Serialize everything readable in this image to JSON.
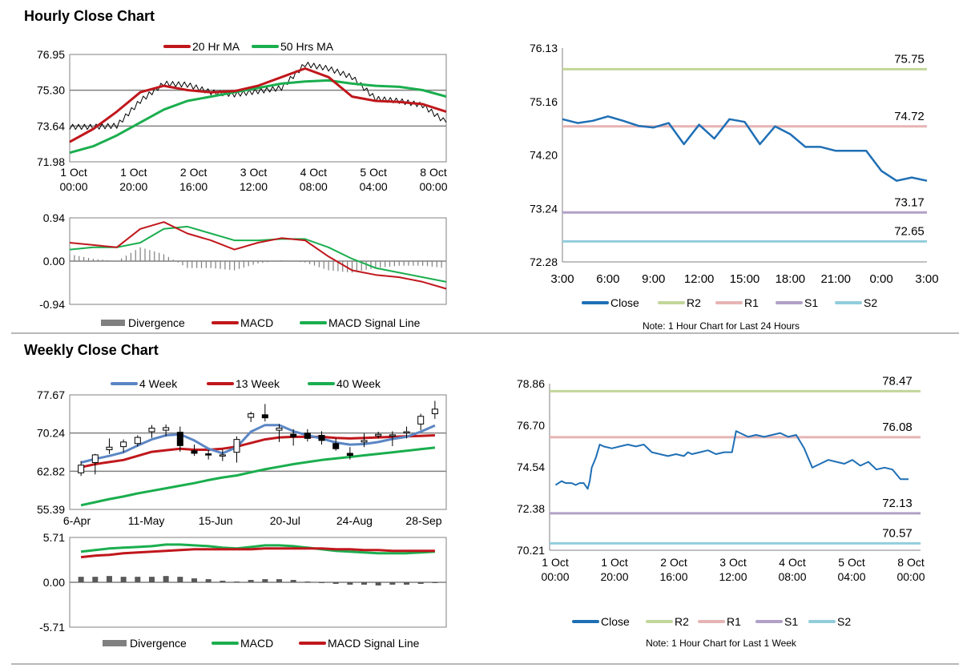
{
  "colors": {
    "red": "#c0171c",
    "green": "#1aae4e",
    "blue": "#1f6fb5",
    "steel": "#5b86c4",
    "r2": "#c3d69b",
    "r1": "#e6b4b4",
    "s1": "#b1a0c7",
    "s2": "#92cddc",
    "grid": "#808080",
    "divergence": "#808080",
    "separator": "#a0a0a0"
  },
  "sections": {
    "hourly_title": "Hourly Close Chart",
    "weekly_title": "Weekly Close Chart"
  },
  "chart_data": [
    {
      "id": "hourly-price",
      "type": "line",
      "title": "Hourly Close Chart",
      "legend": [
        "20 Hr MA",
        "50 Hrs MA"
      ],
      "yticks": [
        "76.95",
        "75.30",
        "73.64",
        "71.98"
      ],
      "ylim": [
        71.98,
        76.95
      ],
      "xticks": [
        "1 Oct|00:00",
        "1 Oct|20:00",
        "2 Oct|16:00",
        "3 Oct|12:00",
        "4 Oct|08:00",
        "5 Oct|04:00",
        "8 Oct|00:00"
      ],
      "x": [
        0,
        6,
        12,
        18,
        24,
        30,
        36,
        42,
        48,
        54,
        60,
        66,
        72,
        78,
        84,
        90,
        96
      ],
      "series": [
        {
          "name": "Close",
          "values": [
            73.6,
            73.6,
            73.65,
            74.8,
            75.6,
            75.55,
            75.2,
            75.1,
            75.25,
            75.4,
            76.5,
            76.3,
            75.9,
            74.9,
            74.8,
            74.6,
            73.8
          ]
        },
        {
          "name": "20 Hr MA",
          "values": [
            72.9,
            73.5,
            74.3,
            75.2,
            75.5,
            75.3,
            75.2,
            75.25,
            75.5,
            75.9,
            76.3,
            75.9,
            75.0,
            74.8,
            74.75,
            74.65,
            74.3
          ]
        },
        {
          "name": "50 Hrs MA",
          "values": [
            72.4,
            72.7,
            73.2,
            73.8,
            74.4,
            74.8,
            75.0,
            75.2,
            75.4,
            75.6,
            75.7,
            75.75,
            75.6,
            75.5,
            75.45,
            75.3,
            75.0
          ]
        }
      ]
    },
    {
      "id": "hourly-macd",
      "type": "line",
      "yticks": [
        "0.94",
        "0.00",
        "-0.94"
      ],
      "ylim": [
        -0.94,
        0.94
      ],
      "legend": [
        "Divergence",
        "MACD",
        "MACD Signal Line"
      ],
      "x": [
        0,
        6,
        12,
        18,
        24,
        30,
        36,
        42,
        48,
        54,
        60,
        66,
        72,
        78,
        84,
        90,
        96
      ],
      "series": [
        {
          "name": "MACD",
          "values": [
            0.4,
            0.35,
            0.3,
            0.7,
            0.85,
            0.6,
            0.45,
            0.25,
            0.4,
            0.5,
            0.45,
            0.1,
            -0.2,
            -0.3,
            -0.35,
            -0.45,
            -0.6
          ]
        },
        {
          "name": "MACD Signal Line",
          "values": [
            0.25,
            0.3,
            0.3,
            0.4,
            0.7,
            0.75,
            0.6,
            0.45,
            0.45,
            0.48,
            0.48,
            0.3,
            0.05,
            -0.15,
            -0.25,
            -0.35,
            -0.45
          ]
        },
        {
          "name": "Divergence",
          "values": [
            0.15,
            0.05,
            0.0,
            0.3,
            0.15,
            -0.15,
            -0.15,
            -0.2,
            -0.05,
            0.02,
            -0.03,
            -0.2,
            -0.25,
            -0.15,
            -0.1,
            -0.1,
            -0.15
          ]
        }
      ]
    },
    {
      "id": "hourly-levels",
      "type": "line",
      "yticks": [
        "76.13",
        "75.16",
        "74.20",
        "73.24",
        "72.28"
      ],
      "ylim": [
        72.28,
        76.13
      ],
      "xticks": [
        "3:00",
        "6:00",
        "9:00",
        "12:00",
        "15:00",
        "18:00",
        "21:00",
        "0:00",
        "3:00"
      ],
      "x": [
        0,
        1,
        2,
        3,
        4,
        5,
        6,
        7,
        8,
        9,
        10,
        11,
        12,
        13,
        14,
        15,
        16,
        17,
        18,
        19,
        20,
        21,
        22,
        23,
        24
      ],
      "series": [
        {
          "name": "Close",
          "values": [
            74.85,
            74.78,
            74.82,
            74.9,
            74.82,
            74.73,
            74.7,
            74.78,
            74.4,
            74.75,
            74.5,
            74.85,
            74.8,
            74.4,
            74.72,
            74.58,
            74.35,
            74.35,
            74.28,
            74.28,
            74.28,
            73.92,
            73.74,
            73.8,
            73.74
          ]
        }
      ],
      "levels": {
        "R2": 75.75,
        "R1": 74.72,
        "S1": 73.17,
        "S2": 72.65
      },
      "level_labels": {
        "R2": "75.75",
        "R1": "74.72",
        "S1": "73.17",
        "S2": "72.65"
      },
      "legend": [
        "Close",
        "R2",
        "R1",
        "S1",
        "S2"
      ],
      "note": "Note: 1 Hour Chart for Last 24 Hours"
    },
    {
      "id": "weekly-price",
      "type": "line",
      "title": "Weekly Close Chart",
      "legend": [
        "4 Week",
        "13 Week",
        "40 Week"
      ],
      "yticks": [
        "77.67",
        "70.24",
        "62.82",
        "55.39"
      ],
      "ylim": [
        55.39,
        77.67
      ],
      "xticks": [
        "6-Apr",
        "11-May",
        "15-Jun",
        "20-Jul",
        "24-Aug",
        "28-Sep"
      ],
      "x": [
        0,
        1,
        2,
        3,
        4,
        5,
        6,
        7,
        8,
        9,
        10,
        11,
        12,
        13,
        14,
        15,
        16,
        17,
        18,
        19,
        20,
        21,
        22,
        23,
        24,
        25
      ],
      "candles": [
        {
          "o": 62.5,
          "h": 64.8,
          "l": 61.9,
          "c": 64.0
        },
        {
          "o": 64.5,
          "h": 66.2,
          "l": 62.2,
          "c": 66.0
        },
        {
          "o": 67.0,
          "h": 69.2,
          "l": 66.2,
          "c": 67.5
        },
        {
          "o": 67.6,
          "h": 69.0,
          "l": 66.5,
          "c": 68.5
        },
        {
          "o": 68.2,
          "h": 69.8,
          "l": 67.6,
          "c": 69.4
        },
        {
          "o": 70.5,
          "h": 71.8,
          "l": 69.3,
          "c": 71.2
        },
        {
          "o": 70.8,
          "h": 71.9,
          "l": 69.6,
          "c": 71.3
        },
        {
          "o": 70.4,
          "h": 71.5,
          "l": 66.6,
          "c": 67.8
        },
        {
          "o": 66.8,
          "h": 68.0,
          "l": 65.8,
          "c": 66.3
        },
        {
          "o": 66.2,
          "h": 67.0,
          "l": 65.1,
          "c": 66.0
        },
        {
          "o": 65.8,
          "h": 67.0,
          "l": 64.8,
          "c": 66.0
        },
        {
          "o": 66.5,
          "h": 69.6,
          "l": 64.5,
          "c": 69.0
        },
        {
          "o": 73.3,
          "h": 74.4,
          "l": 72.4,
          "c": 74.0
        },
        {
          "o": 73.8,
          "h": 75.9,
          "l": 72.5,
          "c": 73.2
        },
        {
          "o": 70.8,
          "h": 72.0,
          "l": 68.5,
          "c": 71.2
        },
        {
          "o": 70.0,
          "h": 71.0,
          "l": 67.8,
          "c": 69.5
        },
        {
          "o": 70.2,
          "h": 71.0,
          "l": 68.6,
          "c": 69.2
        },
        {
          "o": 69.8,
          "h": 70.6,
          "l": 68.0,
          "c": 68.8
        },
        {
          "o": 68.2,
          "h": 69.2,
          "l": 66.8,
          "c": 67.2
        },
        {
          "o": 66.3,
          "h": 67.5,
          "l": 65.1,
          "c": 65.9
        },
        {
          "o": 68.5,
          "h": 70.2,
          "l": 67.5,
          "c": 68.8
        },
        {
          "o": 69.7,
          "h": 70.5,
          "l": 69.2,
          "c": 70.0
        },
        {
          "o": 69.7,
          "h": 70.6,
          "l": 67.7,
          "c": 69.9
        },
        {
          "o": 70.3,
          "h": 71.5,
          "l": 69.2,
          "c": 70.5
        },
        {
          "o": 72.0,
          "h": 74.0,
          "l": 70.8,
          "c": 73.5
        },
        {
          "o": 74.0,
          "h": 76.5,
          "l": 73.0,
          "c": 74.9
        }
      ],
      "series": [
        {
          "name": "4 Week",
          "values": [
            64.5,
            65.2,
            65.8,
            66.5,
            67.8,
            69.0,
            69.8,
            70.0,
            68.8,
            67.2,
            66.3,
            67.5,
            70.5,
            71.8,
            71.8,
            70.6,
            69.8,
            69.2,
            68.4,
            68.0,
            68.1,
            68.5,
            69.1,
            69.5,
            70.5,
            71.7
          ]
        },
        {
          "name": "13 Week",
          "values": [
            63.6,
            64.2,
            64.6,
            65.0,
            65.8,
            66.6,
            66.9,
            67.2,
            67.0,
            67.0,
            67.2,
            67.6,
            68.3,
            69.0,
            69.4,
            69.5,
            69.5,
            69.5,
            69.3,
            69.2,
            69.3,
            69.4,
            69.5,
            69.6,
            69.7,
            69.8
          ]
        },
        {
          "name": "40 Week",
          "values": [
            56.2,
            56.8,
            57.4,
            57.9,
            58.5,
            59.0,
            59.5,
            60.0,
            60.5,
            61.1,
            61.6,
            62.0,
            62.6,
            63.2,
            63.7,
            64.2,
            64.6,
            65.0,
            65.3,
            65.6,
            65.9,
            66.2,
            66.5,
            66.8,
            67.1,
            67.4
          ]
        }
      ]
    },
    {
      "id": "weekly-macd",
      "type": "line",
      "yticks": [
        "5.71",
        "0.00",
        "-5.71"
      ],
      "ylim": [
        -5.71,
        5.71
      ],
      "legend": [
        "Divergence",
        "MACD",
        "MACD Signal Line"
      ],
      "x": [
        0,
        1,
        2,
        3,
        4,
        5,
        6,
        7,
        8,
        9,
        10,
        11,
        12,
        13,
        14,
        15,
        16,
        17,
        18,
        19,
        20,
        21,
        22,
        23,
        24,
        25
      ],
      "series": [
        {
          "name": "MACD",
          "values": [
            3.9,
            4.1,
            4.3,
            4.4,
            4.5,
            4.6,
            4.8,
            4.8,
            4.7,
            4.6,
            4.4,
            4.3,
            4.5,
            4.7,
            4.7,
            4.6,
            4.4,
            4.2,
            4.0,
            3.9,
            3.8,
            3.7,
            3.7,
            3.7,
            3.8,
            3.9
          ]
        },
        {
          "name": "MACD Signal Line",
          "values": [
            3.2,
            3.4,
            3.5,
            3.7,
            3.8,
            3.9,
            4.0,
            4.1,
            4.2,
            4.2,
            4.2,
            4.2,
            4.2,
            4.3,
            4.3,
            4.3,
            4.3,
            4.3,
            4.2,
            4.2,
            4.1,
            4.1,
            4.0,
            4.0,
            4.0,
            4.0
          ]
        },
        {
          "name": "Divergence",
          "values": [
            0.7,
            0.7,
            0.8,
            0.7,
            0.7,
            0.7,
            0.8,
            0.7,
            0.5,
            0.4,
            0.2,
            0.1,
            0.3,
            0.4,
            0.4,
            0.3,
            0.1,
            -0.1,
            -0.2,
            -0.3,
            -0.3,
            -0.4,
            -0.3,
            -0.3,
            -0.2,
            -0.1
          ]
        }
      ]
    },
    {
      "id": "weekly-levels",
      "type": "line",
      "yticks": [
        "78.86",
        "76.70",
        "74.54",
        "72.38",
        "70.21"
      ],
      "ylim": [
        70.21,
        78.86
      ],
      "xticks": [
        "1 Oct|00:00",
        "1 Oct|20:00",
        "2 Oct|16:00",
        "3 Oct|12:00",
        "4 Oct|08:00",
        "5 Oct|04:00",
        "8 Oct|00:00"
      ],
      "x": [
        0,
        3,
        5,
        8,
        10,
        12,
        14,
        16,
        17,
        18,
        20,
        22,
        24,
        28,
        32,
        36,
        40,
        44,
        48,
        52,
        56,
        60,
        64,
        66,
        68,
        72,
        76,
        80,
        84,
        88,
        90,
        92,
        96,
        100,
        104,
        108,
        112,
        116,
        120,
        124,
        128,
        132,
        136,
        140,
        144,
        148,
        152,
        156,
        160,
        164,
        168,
        172,
        176
      ],
      "series": [
        {
          "name": "Close",
          "values": [
            73.6,
            73.8,
            73.7,
            73.7,
            73.6,
            73.7,
            73.7,
            73.4,
            73.8,
            74.5,
            75.0,
            75.7,
            75.6,
            75.5,
            75.6,
            75.7,
            75.6,
            75.7,
            75.3,
            75.2,
            75.1,
            75.2,
            75.1,
            75.3,
            75.2,
            75.3,
            75.4,
            75.2,
            75.3,
            75.3,
            76.4,
            76.3,
            76.1,
            76.2,
            76.1,
            76.2,
            76.3,
            76.1,
            76.2,
            75.5,
            74.5,
            74.7,
            74.9,
            74.8,
            74.7,
            74.9,
            74.6,
            74.8,
            74.4,
            74.5,
            74.4,
            73.9,
            73.9
          ]
        }
      ],
      "levels": {
        "R2": 78.47,
        "R1": 76.08,
        "S1": 72.13,
        "S2": 70.57
      },
      "level_labels": {
        "R2": "78.47",
        "R1": "76.08",
        "S1": "72.13",
        "S2": "70.57"
      },
      "legend": [
        "Close",
        "R2",
        "R1",
        "S1",
        "S2"
      ],
      "note": "Note: 1 Hour Chart for Last 1 Week"
    }
  ]
}
